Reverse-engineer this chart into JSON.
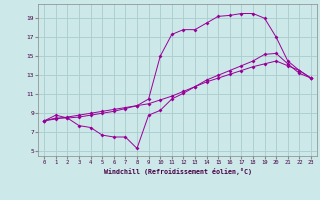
{
  "xlabel": "Windchill (Refroidissement éolien,°C)",
  "bg_color": "#cce8e8",
  "grid_color": "#aacccc",
  "line_color": "#990099",
  "xmin": -0.5,
  "xmax": 23.5,
  "ymin": 4.5,
  "ymax": 20.5,
  "yticks": [
    5,
    7,
    9,
    11,
    13,
    15,
    17,
    19
  ],
  "xticks": [
    0,
    1,
    2,
    3,
    4,
    5,
    6,
    7,
    8,
    9,
    10,
    11,
    12,
    13,
    14,
    15,
    16,
    17,
    18,
    19,
    20,
    21,
    22,
    23
  ],
  "line1_x": [
    0,
    1,
    2,
    3,
    4,
    5,
    6,
    7,
    8,
    9,
    10,
    11,
    12,
    13,
    14,
    15,
    16,
    17,
    18,
    19,
    20,
    21,
    22,
    23
  ],
  "line1_y": [
    8.2,
    8.8,
    8.5,
    7.7,
    7.5,
    6.7,
    6.5,
    6.5,
    5.3,
    8.8,
    9.3,
    10.5,
    11.1,
    11.8,
    12.5,
    13.0,
    13.5,
    14.0,
    14.5,
    15.2,
    15.3,
    14.2,
    13.2,
    12.7
  ],
  "line2_x": [
    0,
    1,
    2,
    3,
    4,
    5,
    6,
    7,
    8,
    9,
    10,
    11,
    12,
    13,
    14,
    15,
    16,
    17,
    18,
    19,
    20,
    21,
    22,
    23
  ],
  "line2_y": [
    8.2,
    8.4,
    8.6,
    8.8,
    9.0,
    9.2,
    9.4,
    9.6,
    9.8,
    10.0,
    10.4,
    10.8,
    11.3,
    11.8,
    12.3,
    12.7,
    13.1,
    13.5,
    13.9,
    14.2,
    14.5,
    14.0,
    13.5,
    12.7
  ],
  "line3_x": [
    0,
    1,
    2,
    3,
    4,
    5,
    6,
    7,
    8,
    9,
    10,
    11,
    12,
    13,
    14,
    15,
    16,
    17,
    18,
    19,
    20,
    21,
    22,
    23
  ],
  "line3_y": [
    8.2,
    8.5,
    8.5,
    8.6,
    8.8,
    9.0,
    9.2,
    9.5,
    9.8,
    10.5,
    15.0,
    17.3,
    17.8,
    17.8,
    18.5,
    19.2,
    19.3,
    19.5,
    19.5,
    19.0,
    17.0,
    14.5,
    13.5,
    12.7
  ]
}
